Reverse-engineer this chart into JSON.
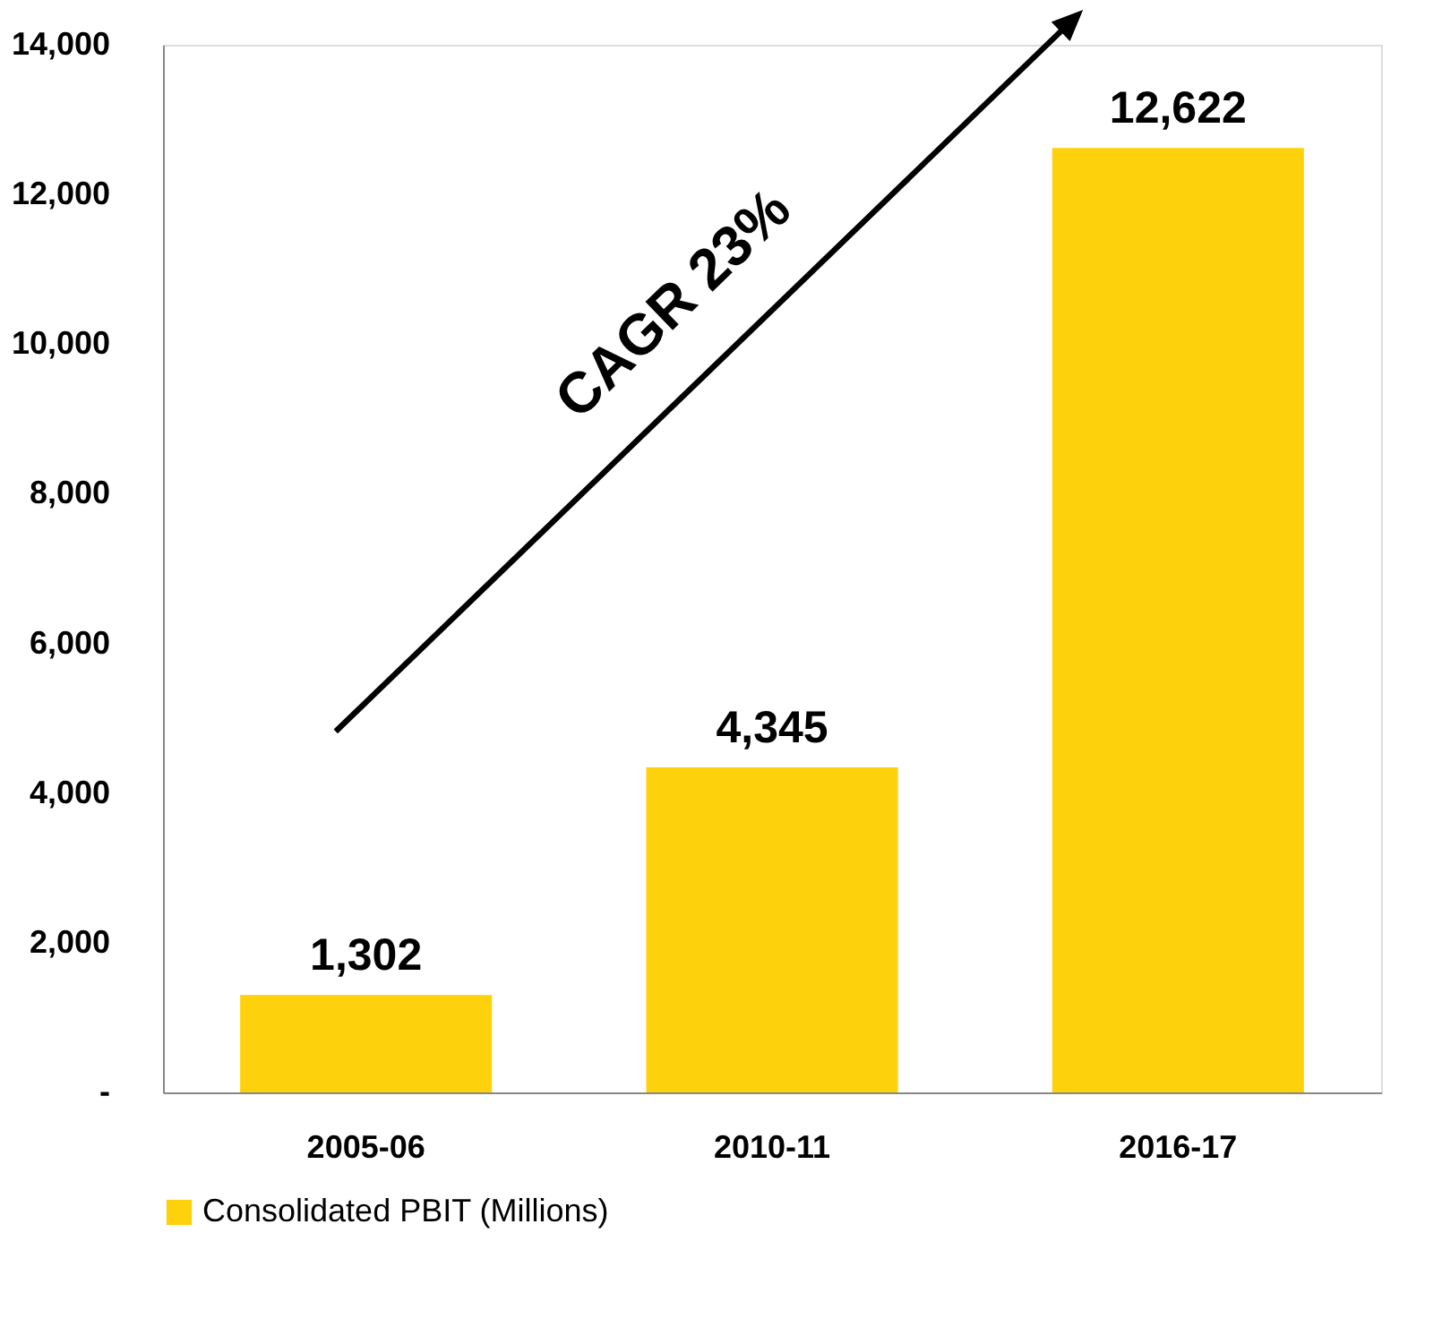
{
  "chart_data": {
    "type": "bar",
    "categories": [
      "2005-06",
      "2010-11",
      "2016-17"
    ],
    "series": [
      {
        "name": "Consolidated PBIT (Millions)",
        "color": "#fdd10c",
        "values": [
          1302,
          4345,
          12622
        ]
      }
    ],
    "ylim": [
      0,
      14000
    ],
    "yticks": [
      {
        "value": 0,
        "label": "-"
      },
      {
        "value": 2000,
        "label": "2,000"
      },
      {
        "value": 4000,
        "label": "4,000"
      },
      {
        "value": 6000,
        "label": "6,000"
      },
      {
        "value": 8000,
        "label": "8,000"
      },
      {
        "value": 10000,
        "label": "10,000"
      },
      {
        "value": 12000,
        "label": "12,000"
      },
      {
        "value": 14000,
        "label": "14,000"
      }
    ],
    "value_labels": [
      "1,302",
      "4,345",
      "12,622"
    ],
    "annotations": [
      "CAGR  23%"
    ],
    "grid": false,
    "legend": "bottom"
  }
}
